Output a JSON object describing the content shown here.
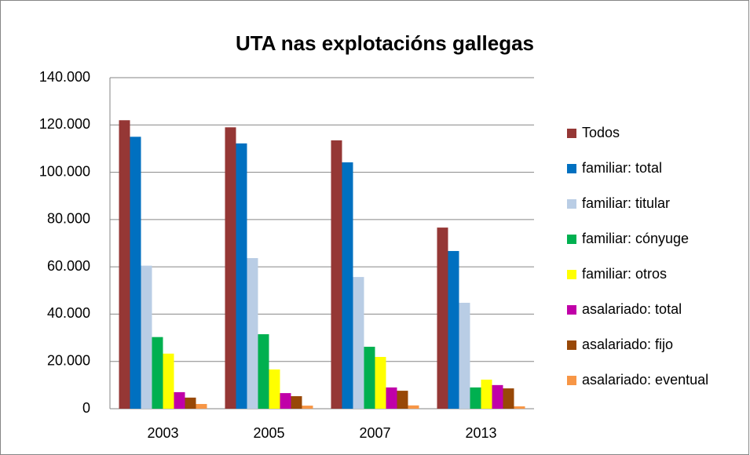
{
  "chart_data": {
    "type": "bar",
    "title": "UTA nas explotacións gallegas",
    "categories": [
      "2003",
      "2005",
      "2007",
      "2013"
    ],
    "series": [
      {
        "name": "Todos",
        "color": "#953735",
        "values": [
          122000,
          119000,
          113500,
          76600
        ]
      },
      {
        "name": "familiar: total",
        "color": "#0070c0",
        "values": [
          115000,
          112200,
          104200,
          66700
        ]
      },
      {
        "name": "familiar: titular",
        "color": "#b9cde5",
        "values": [
          60500,
          63700,
          55700,
          44800
        ]
      },
      {
        "name": "familiar: cónyuge",
        "color": "#00b050",
        "values": [
          30300,
          31500,
          26200,
          9000
        ]
      },
      {
        "name": "familiar: otros",
        "color": "#ffff00",
        "values": [
          23300,
          16600,
          21900,
          12300
        ]
      },
      {
        "name": "asalariado: total",
        "color": "#c000a8",
        "values": [
          7000,
          6600,
          9000,
          10000
        ]
      },
      {
        "name": "asalariado: fijo",
        "color": "#984807",
        "values": [
          4700,
          5300,
          7600,
          8600
        ]
      },
      {
        "name": "asalariado: eventual",
        "color": "#f79646",
        "values": [
          2000,
          1300,
          1400,
          1000
        ]
      }
    ],
    "ylim": [
      0,
      140000
    ],
    "yticks": [
      0,
      {
        "value": 20000,
        "label": "20.000"
      },
      {
        "value": 40000,
        "label": "40.000"
      },
      {
        "value": 60000,
        "label": "60.000"
      },
      {
        "value": 80000,
        "label": "80.000"
      },
      {
        "value": 100000,
        "label": "100.000"
      },
      {
        "value": 120000,
        "label": "120.000"
      },
      {
        "value": 140000,
        "label": "140.000"
      }
    ],
    "grid": true,
    "legend": "right"
  }
}
